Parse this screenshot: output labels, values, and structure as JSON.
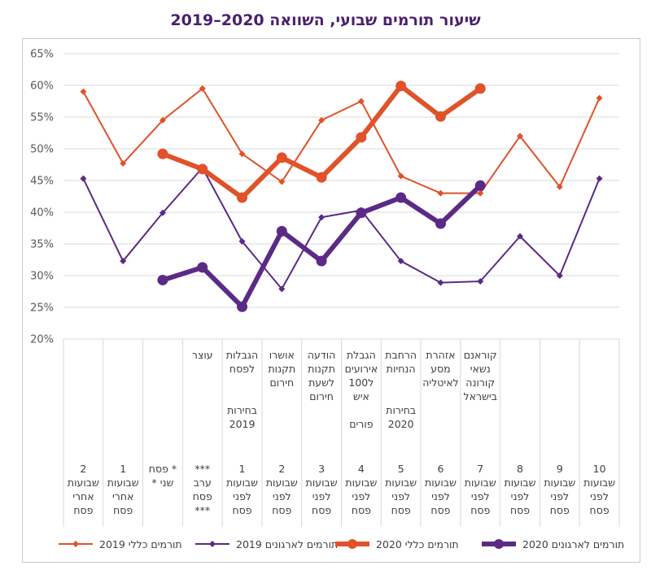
{
  "title": "שיעור תורמים שבועי, השוואה 2020–2019",
  "chart_data": {
    "type": "line",
    "ylim": [
      20,
      65
    ],
    "yticks": [
      "65%",
      "60%",
      "55%",
      "50%",
      "45%",
      "40%",
      "35%",
      "30%",
      "25%",
      "20%"
    ],
    "categories": [
      {
        "top": "",
        "bottom": "10\nשבועות\nלפני\nפסח"
      },
      {
        "top": "",
        "bottom": "9\nשבועות\nלפני\nפסח"
      },
      {
        "top": "",
        "bottom": "8\nשבועות\nלפני\nפסח"
      },
      {
        "top": "קוראנם\nנשאי\nקורונה\nבישראל",
        "bottom": "7\nשבועות\nלפני\nפסח"
      },
      {
        "top": "אזהרת\nמסע\nלאיטליה",
        "bottom": "6\nשבועות\nלפני\nפסח"
      },
      {
        "top": "הרחבת\nהנחיות\n\n\nבחירות\n2020",
        "bottom": "5\nשבועות\nלפני\nפסח"
      },
      {
        "top": "הגבלת\nאירועים\nל100\nאיש\n\nפורים",
        "bottom": "4\nשבועות\nלפני\nפסח"
      },
      {
        "top": "הודעה\nתקנות\nלשעת\nחירום",
        "bottom": "3\nשבועות\nלפני\nפסח"
      },
      {
        "top": "אושרו\nתקנות\nחירום",
        "bottom": "2\nשבועות\nלפני\nפסח"
      },
      {
        "top": "הגבלות\nלפסח\n\n\nבחירות\n2019",
        "bottom": "1\nשבועות\nלפני\nפסח"
      },
      {
        "top": "עוצר",
        "bottom": "***\nערב\nפסח\n***"
      },
      {
        "top": "",
        "bottom": "* פסח\nשני *"
      },
      {
        "top": "",
        "bottom": "1\nשבועות\nאחרי\nפסח"
      },
      {
        "top": "",
        "bottom": "2\nשבועות\nאחרי\nפסח"
      }
    ],
    "series": [
      {
        "name": "תורמים כללי 2019",
        "color": "#e0522a",
        "width": 2,
        "marker": "diamond",
        "values": [
          58,
          44,
          52,
          43,
          43,
          45.7,
          57.5,
          54.5,
          44.8,
          49.2,
          59.5,
          54.5,
          47.7,
          59
        ]
      },
      {
        "name": "תורמים לארגונים 2019",
        "color": "#5b2a86",
        "width": 2,
        "marker": "diamond",
        "values": [
          45.3,
          30,
          36.2,
          29.1,
          28.9,
          32.3,
          40.3,
          39.2,
          27.9,
          35.4,
          47,
          39.9,
          32.3,
          45.3
        ]
      },
      {
        "name": "תורמים כללי 2020",
        "color": "#e0522a",
        "width": 6,
        "marker": "circle",
        "values": [
          null,
          null,
          null,
          59.5,
          55.1,
          59.9,
          51.8,
          45.5,
          48.6,
          42.3,
          46.8,
          49.2,
          null,
          null
        ]
      },
      {
        "name": "תורמים לארגונים 2020",
        "color": "#5b2a86",
        "width": 6,
        "marker": "circle",
        "values": [
          null,
          null,
          null,
          44.2,
          38.2,
          42.3,
          39.9,
          32.3,
          37,
          25.1,
          31.3,
          29.3,
          null,
          null
        ]
      }
    ]
  }
}
